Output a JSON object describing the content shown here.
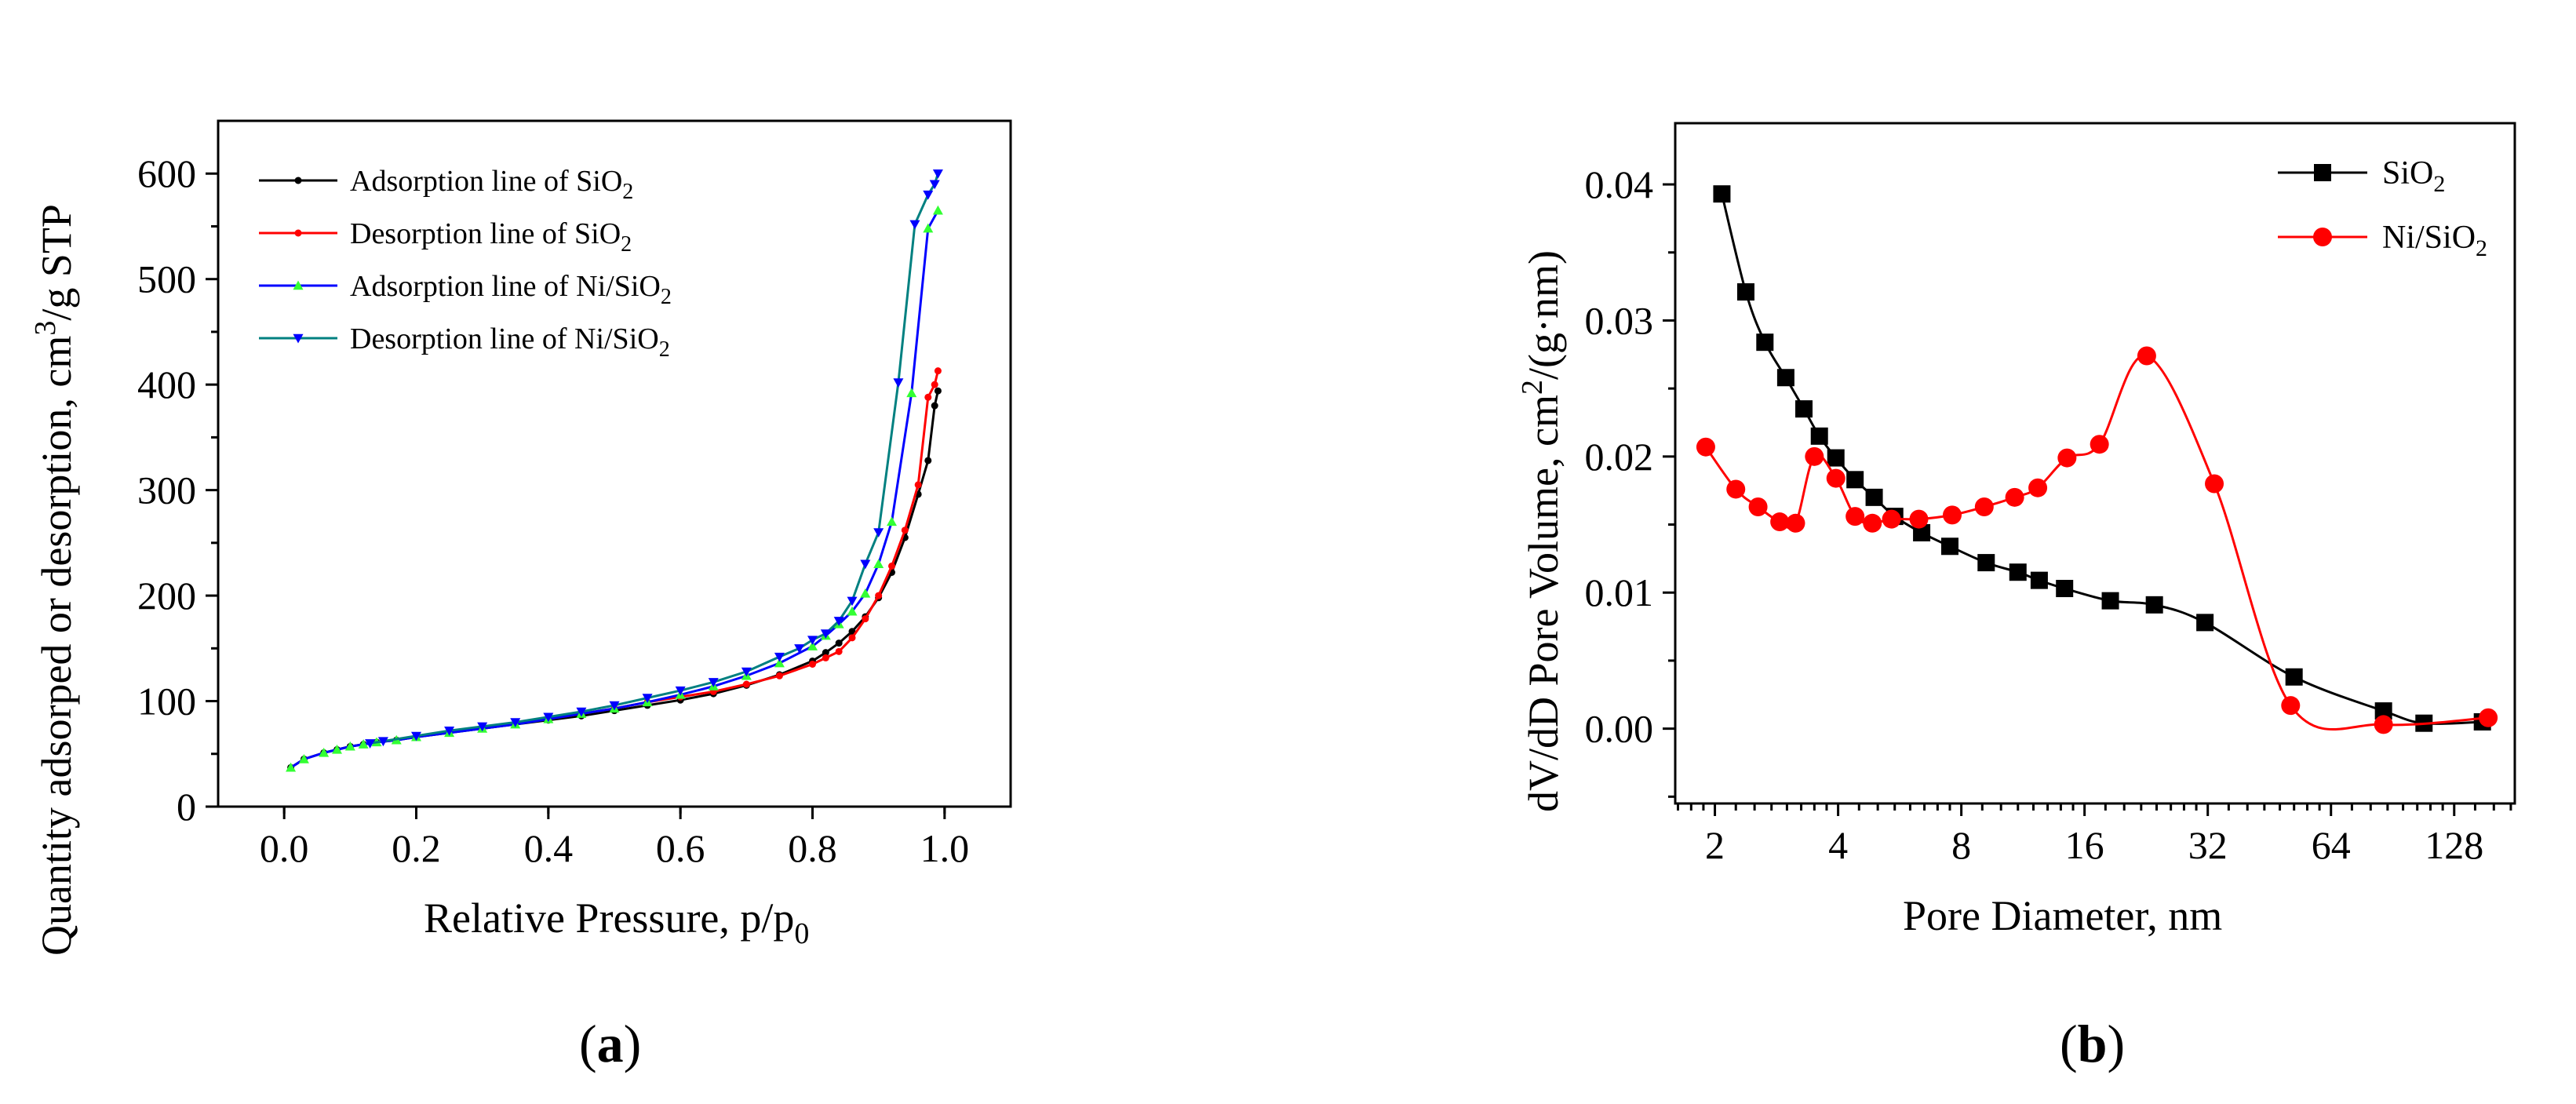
{
  "chart_data": [
    {
      "type": "line",
      "panel_label": "a",
      "xlabel": "Relative Pressure, p/p",
      "xlabel_sub": "0",
      "ylabel": "Quantity adsorped or desorption, cm",
      "ylabel_sup": "3",
      "ylabel_tail": "/g STP",
      "xlim": [
        -0.1,
        1.1
      ],
      "ylim": [
        0,
        650
      ],
      "xticks": [
        0.0,
        0.2,
        0.4,
        0.6,
        0.8,
        1.0
      ],
      "xtick_labels": [
        "0.0",
        "0.2",
        "0.4",
        "0.6",
        "0.8",
        "1.0"
      ],
      "yticks": [
        0,
        100,
        200,
        300,
        400,
        500,
        600
      ],
      "ytick_labels": [
        "0",
        "100",
        "200",
        "300",
        "400",
        "500",
        "600"
      ],
      "legend_position": "top-left",
      "series": [
        {
          "name": "Adsorption line of SiO",
          "name_sub": "2",
          "color": "#000000",
          "marker": "circle",
          "x": [
            0.01,
            0.03,
            0.06,
            0.08,
            0.1,
            0.12,
            0.14,
            0.17,
            0.2,
            0.25,
            0.3,
            0.35,
            0.4,
            0.45,
            0.5,
            0.55,
            0.6,
            0.65,
            0.7,
            0.75,
            0.8,
            0.82,
            0.84,
            0.86,
            0.88,
            0.9,
            0.92,
            0.94,
            0.96,
            0.975,
            0.985,
            0.99
          ],
          "y": [
            37,
            45,
            51,
            54,
            57,
            59,
            61,
            63,
            66,
            70,
            74,
            78,
            82,
            86,
            91,
            96,
            101,
            107,
            115,
            125,
            138,
            146,
            155,
            166,
            180,
            198,
            222,
            255,
            296,
            328,
            380,
            394
          ]
        },
        {
          "name": "Desorption line of SiO",
          "name_sub": "2",
          "color": "#ff0000",
          "marker": "circle",
          "x": [
            0.99,
            0.985,
            0.975,
            0.96,
            0.94,
            0.92,
            0.9,
            0.88,
            0.86,
            0.84,
            0.82,
            0.8,
            0.75,
            0.7,
            0.65,
            0.6,
            0.55,
            0.5,
            0.45,
            0.4,
            0.35,
            0.3
          ],
          "y": [
            413,
            400,
            388,
            305,
            262,
            228,
            200,
            178,
            160,
            147,
            141,
            135,
            124,
            116,
            109,
            104,
            99,
            93,
            88,
            83,
            79,
            75
          ]
        },
        {
          "name": "Adsorption line of Ni/SiO",
          "name_sub": "2",
          "color": "#0000ff",
          "marker": "triangle-up",
          "marker_color": "#33ff33",
          "x": [
            0.01,
            0.03,
            0.06,
            0.08,
            0.1,
            0.12,
            0.14,
            0.17,
            0.2,
            0.25,
            0.3,
            0.35,
            0.4,
            0.45,
            0.5,
            0.55,
            0.6,
            0.65,
            0.7,
            0.75,
            0.8,
            0.82,
            0.84,
            0.86,
            0.88,
            0.9,
            0.92,
            0.95,
            0.975,
            0.99
          ],
          "y": [
            37,
            45,
            51,
            54,
            57,
            59,
            61,
            63,
            66,
            70,
            74,
            78,
            83,
            88,
            93,
            99,
            106,
            114,
            124,
            136,
            152,
            162,
            173,
            185,
            202,
            230,
            270,
            392,
            548,
            565
          ]
        },
        {
          "name": "Desorption line of Ni/SiO",
          "name_sub": "2",
          "color": "#008080",
          "marker": "triangle-down",
          "marker_color": "#0000ff",
          "x": [
            0.99,
            0.985,
            0.975,
            0.955,
            0.93,
            0.9,
            0.88,
            0.86,
            0.84,
            0.82,
            0.8,
            0.78,
            0.75,
            0.7,
            0.65,
            0.6,
            0.55,
            0.5,
            0.45,
            0.4,
            0.35,
            0.3,
            0.25,
            0.2,
            0.15,
            0.13
          ],
          "y": [
            600,
            590,
            580,
            552,
            402,
            260,
            230,
            195,
            176,
            164,
            158,
            150,
            142,
            128,
            118,
            110,
            103,
            96,
            90,
            85,
            80,
            76,
            72,
            67,
            62,
            60
          ]
        }
      ]
    },
    {
      "type": "line",
      "panel_label": "b",
      "xscale": "log2",
      "xlabel": "Pore Diameter, nm",
      "ylabel": "dV/dD Pore Volume, cm",
      "ylabel_sup": "2",
      "ylabel_tail": "/(g·nm)",
      "xlim": [
        1.6,
        180
      ],
      "ylim": [
        -0.0055,
        0.0445
      ],
      "xticks": [
        2,
        4,
        8,
        16,
        32,
        64,
        128
      ],
      "xtick_labels": [
        "2",
        "4",
        "8",
        "16",
        "32",
        "64",
        "128"
      ],
      "yticks": [
        0.0,
        0.01,
        0.02,
        0.03,
        0.04
      ],
      "ytick_labels": [
        "0.00",
        "0.01",
        "0.02",
        "0.03",
        "0.04"
      ],
      "legend_position": "top-right",
      "series": [
        {
          "name": "SiO",
          "name_sub": "2",
          "color": "#000000",
          "marker": "square",
          "x": [
            2.08,
            2.38,
            2.65,
            2.98,
            3.3,
            3.6,
            3.95,
            4.4,
            4.9,
            5.5,
            6.4,
            7.5,
            9.2,
            11.0,
            12.4,
            14.3,
            18.5,
            23.7,
            31.5,
            52,
            86,
            108,
            150
          ],
          "y": [
            0.0393,
            0.0321,
            0.0284,
            0.0258,
            0.0235,
            0.0215,
            0.0199,
            0.0183,
            0.017,
            0.0156,
            0.0144,
            0.0134,
            0.0122,
            0.0115,
            0.0109,
            0.0103,
            0.0094,
            0.0091,
            0.0078,
            0.0038,
            0.0013,
            0.0004,
            0.0005
          ]
        },
        {
          "name": "Ni/SiO",
          "name_sub": "2",
          "color": "#ff0000",
          "marker": "circle",
          "x": [
            1.9,
            2.25,
            2.55,
            2.88,
            3.15,
            3.5,
            3.95,
            4.4,
            4.85,
            5.4,
            6.3,
            7.6,
            9.1,
            10.8,
            12.3,
            14.5,
            17.4,
            22.7,
            33.2,
            51,
            86,
            155
          ],
          "y": [
            0.0207,
            0.0176,
            0.0163,
            0.0152,
            0.0151,
            0.02,
            0.0184,
            0.0156,
            0.0151,
            0.0154,
            0.0154,
            0.0157,
            0.0163,
            0.017,
            0.0177,
            0.0199,
            0.0209,
            0.0274,
            0.018,
            0.0017,
            0.0003,
            0.0008
          ]
        }
      ]
    }
  ],
  "captions": {
    "a_open": "(",
    "a_label": "a",
    "a_close": ")",
    "b_open": "(",
    "b_label": "b",
    "b_close": ")"
  }
}
